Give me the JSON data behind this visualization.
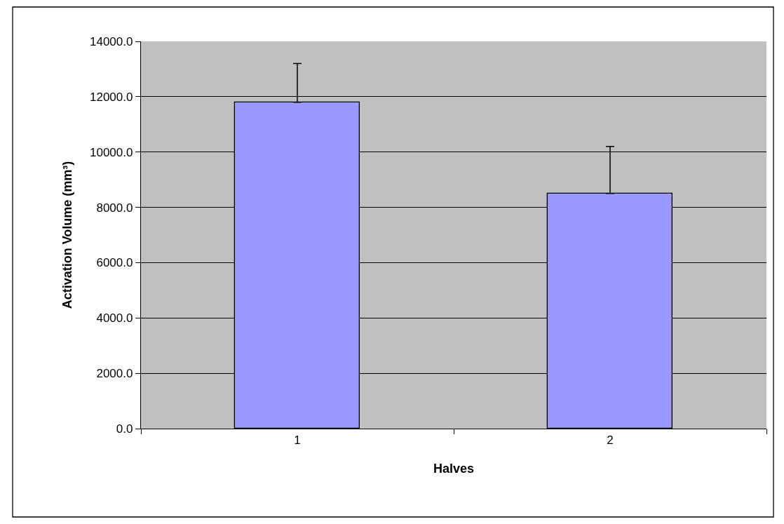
{
  "chart_data": {
    "type": "bar",
    "xlabel": "Halves",
    "ylabel": "Activation Volume (mm³)",
    "categories": [
      "1",
      "2"
    ],
    "values": [
      11800,
      8500
    ],
    "errors": [
      [
        11800,
        13200
      ],
      [
        8500,
        10200
      ]
    ],
    "color": "#9999ff",
    "ylim": [
      0,
      14000
    ],
    "yticks": [
      {
        "value": 0,
        "label": "0.0"
      },
      {
        "value": 2000,
        "label": "2000.0"
      },
      {
        "value": 4000,
        "label": "4000.0"
      },
      {
        "value": 6000,
        "label": "6000.0"
      },
      {
        "value": 8000,
        "label": "8000.0"
      },
      {
        "value": 10000,
        "label": "10000.0"
      },
      {
        "value": 12000,
        "label": "12000.0"
      },
      {
        "value": 14000,
        "label": "14000.0"
      }
    ],
    "grid": "y",
    "legend": false
  }
}
